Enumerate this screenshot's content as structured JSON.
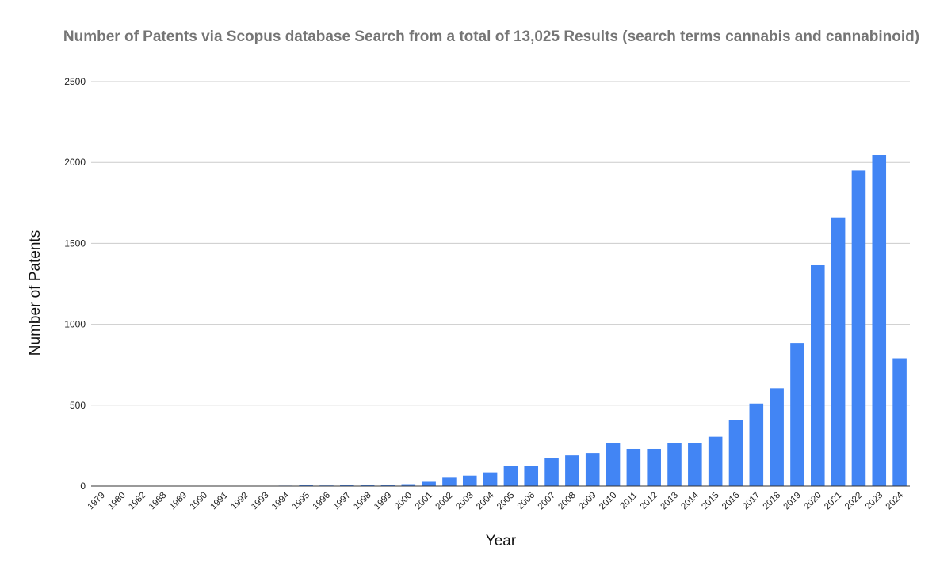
{
  "chart_data": {
    "type": "bar",
    "title": "Number of Patents via Scopus database Search from a total of 13,025 Results (search terms cannabis and cannabinoid)",
    "xlabel": "Year",
    "ylabel": "Number of Patents",
    "ylim": [
      0,
      2500
    ],
    "yticks": [
      "0",
      "500",
      "1000",
      "1500",
      "2000",
      "2500"
    ],
    "grid": true,
    "legend": "none",
    "bar_color": "#4285F4",
    "categories": [
      "1979",
      "1980",
      "1982",
      "1988",
      "1989",
      "1990",
      "1991",
      "1992",
      "1993",
      "1994",
      "1995",
      "1996",
      "1997",
      "1998",
      "1999",
      "2000",
      "2001",
      "2002",
      "2003",
      "2004",
      "2005",
      "2006",
      "2007",
      "2008",
      "2009",
      "2010",
      "2011",
      "2012",
      "2013",
      "2014",
      "2015",
      "2016",
      "2017",
      "2018",
      "2019",
      "2020",
      "2021",
      "2022",
      "2023",
      "2024"
    ],
    "values": [
      2,
      2,
      1,
      1,
      1,
      1,
      2,
      1,
      1,
      3,
      6,
      4,
      8,
      8,
      8,
      12,
      27,
      52,
      65,
      85,
      125,
      125,
      175,
      190,
      205,
      265,
      230,
      230,
      265,
      265,
      305,
      410,
      510,
      605,
      885,
      1365,
      1660,
      1950,
      2045,
      790
    ]
  }
}
